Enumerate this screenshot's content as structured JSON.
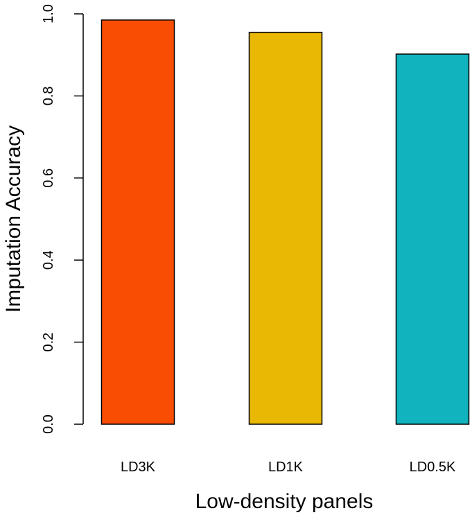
{
  "chart_data": {
    "type": "bar",
    "title": "",
    "xlabel": "Low-density panels",
    "ylabel": "Imputation Accuracy",
    "categories": [
      "LD3K",
      "LD1K",
      "LD0.5K"
    ],
    "values": [
      0.985,
      0.955,
      0.902
    ],
    "colors": [
      "#fa4d04",
      "#e8b804",
      "#11b3be"
    ],
    "ylim": [
      0,
      1.0
    ],
    "yticks": [
      0.0,
      0.2,
      0.4,
      0.6,
      0.8,
      1.0
    ],
    "ytick_labels": [
      "0.0",
      "0.2",
      "0.4",
      "0.6",
      "0.8",
      "1.0"
    ],
    "grid": false,
    "legend": "none"
  }
}
